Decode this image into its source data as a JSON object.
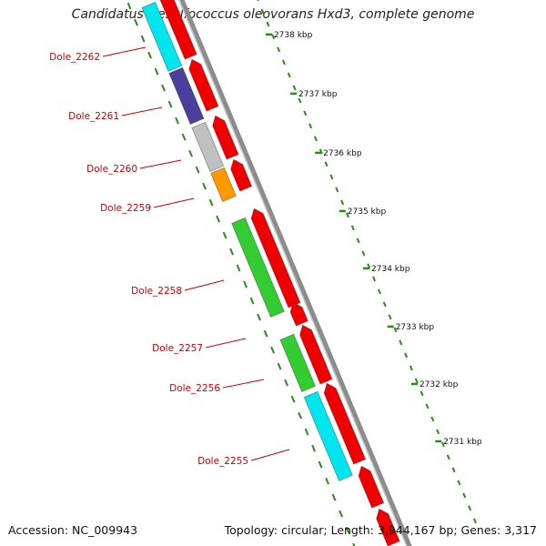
{
  "title": "Candidatus Desulfococcus oleovorans Hxd3, complete genome",
  "footer": {
    "accession": "Accession: NC_009943",
    "summary": "Topology: circular; Length: 3,944,167 bp; Genes: 3,317"
  },
  "colors": {
    "forward_cds": "#ee0000",
    "backbone": "#8c8c8c",
    "tick": "#2a8a1a",
    "label": "#cc0000",
    "scale_text": "#111111"
  },
  "scale": {
    "unit": "kbp",
    "labels": [
      "2738 kbp",
      "2737 kbp",
      "2736 kbp",
      "2735 kbp",
      "2734 kbp",
      "2733 kbp",
      "2732 kbp",
      "2731 kbp"
    ]
  },
  "genes": [
    {
      "name": "Dole_2262",
      "color": "#00e5ee"
    },
    {
      "name": "Dole_2261",
      "color": "#4b3f9e"
    },
    {
      "name": "Dole_2260",
      "color": "#c0c0c0"
    },
    {
      "name": "Dole_2259",
      "color": "#ff9900"
    },
    {
      "name": "Dole_2258",
      "color": "#33cc33"
    },
    {
      "name": "Dole_2257",
      "color": ""
    },
    {
      "name": "Dole_2256",
      "color": "#33cc33"
    },
    {
      "name": "Dole_2255",
      "color": "#00e5ee"
    }
  ]
}
